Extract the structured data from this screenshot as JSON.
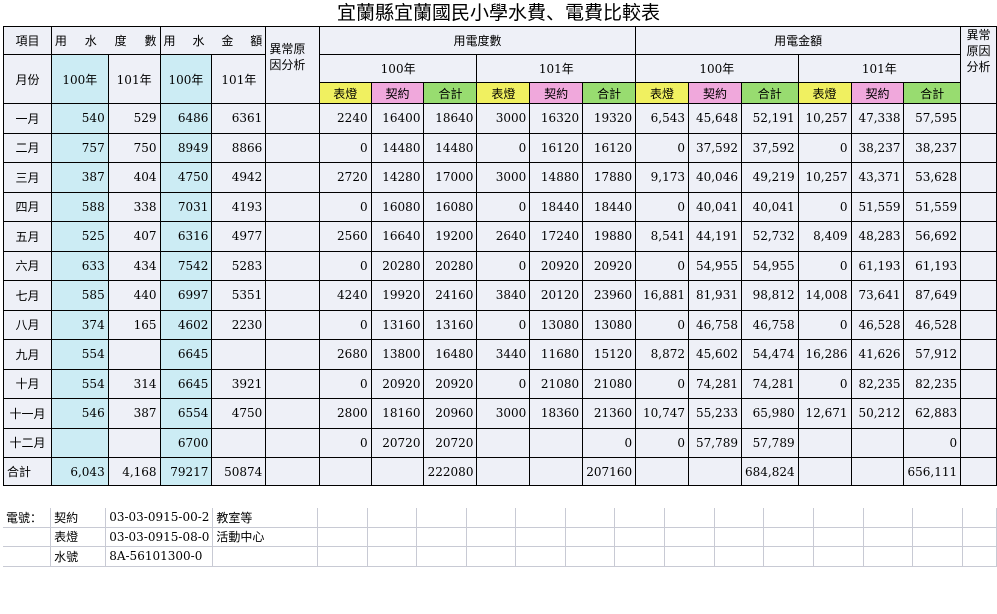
{
  "title": "宜蘭縣宜蘭國民小學水費、電費比較表",
  "headers": {
    "item": "項目",
    "water_units": [
      "用",
      "水",
      "度",
      "數"
    ],
    "water_amount": [
      "用",
      "水",
      "金",
      "額"
    ],
    "reason": "異常原因分析",
    "elec_units": "用電度數",
    "elec_amount": "用電金額",
    "reason2": "異常原因分析",
    "month": "月份",
    "y100": "100年",
    "y101": "101年",
    "meter": "表燈",
    "contract": "契約",
    "total": "合計"
  },
  "rows": [
    {
      "month": "一月",
      "w100": "540",
      "w101": "529",
      "wa100": "6486",
      "wa101": "6361",
      "eu100": [
        "2240",
        "16400",
        "18640"
      ],
      "eu101": [
        "3000",
        "16320",
        "19320"
      ],
      "ea100": [
        "6,543",
        "45,648",
        "52,191"
      ],
      "ea101": [
        "10,257",
        "47,338",
        "57,595"
      ]
    },
    {
      "month": "二月",
      "w100": "757",
      "w101": "750",
      "wa100": "8949",
      "wa101": "8866",
      "eu100": [
        "0",
        "14480",
        "14480"
      ],
      "eu101": [
        "0",
        "16120",
        "16120"
      ],
      "ea100": [
        "0",
        "37,592",
        "37,592"
      ],
      "ea101": [
        "0",
        "38,237",
        "38,237"
      ]
    },
    {
      "month": "三月",
      "w100": "387",
      "w101": "404",
      "wa100": "4750",
      "wa101": "4942",
      "eu100": [
        "2720",
        "14280",
        "17000"
      ],
      "eu101": [
        "3000",
        "14880",
        "17880"
      ],
      "ea100": [
        "9,173",
        "40,046",
        "49,219"
      ],
      "ea101": [
        "10,257",
        "43,371",
        "53,628"
      ]
    },
    {
      "month": "四月",
      "w100": "588",
      "w101": "338",
      "wa100": "7031",
      "wa101": "4193",
      "eu100": [
        "0",
        "16080",
        "16080"
      ],
      "eu101": [
        "0",
        "18440",
        "18440"
      ],
      "ea100": [
        "0",
        "40,041",
        "40,041"
      ],
      "ea101": [
        "0",
        "51,559",
        "51,559"
      ]
    },
    {
      "month": "五月",
      "w100": "525",
      "w101": "407",
      "wa100": "6316",
      "wa101": "4977",
      "eu100": [
        "2560",
        "16640",
        "19200"
      ],
      "eu101": [
        "2640",
        "17240",
        "19880"
      ],
      "ea100": [
        "8,541",
        "44,191",
        "52,732"
      ],
      "ea101": [
        "8,409",
        "48,283",
        "56,692"
      ]
    },
    {
      "month": "六月",
      "w100": "633",
      "w101": "434",
      "wa100": "7542",
      "wa101": "5283",
      "eu100": [
        "0",
        "20280",
        "20280"
      ],
      "eu101": [
        "0",
        "20920",
        "20920"
      ],
      "ea100": [
        "0",
        "54,955",
        "54,955"
      ],
      "ea101": [
        "0",
        "61,193",
        "61,193"
      ]
    },
    {
      "month": "七月",
      "w100": "585",
      "w101": "440",
      "wa100": "6997",
      "wa101": "5351",
      "eu100": [
        "4240",
        "19920",
        "24160"
      ],
      "eu101": [
        "3840",
        "20120",
        "23960"
      ],
      "ea100": [
        "16,881",
        "81,931",
        "98,812"
      ],
      "ea101": [
        "14,008",
        "73,641",
        "87,649"
      ]
    },
    {
      "month": "八月",
      "w100": "374",
      "w101": "165",
      "wa100": "4602",
      "wa101": "2230",
      "eu100": [
        "0",
        "13160",
        "13160"
      ],
      "eu101": [
        "0",
        "13080",
        "13080"
      ],
      "ea100": [
        "0",
        "46,758",
        "46,758"
      ],
      "ea101": [
        "0",
        "46,528",
        "46,528"
      ]
    },
    {
      "month": "九月",
      "w100": "554",
      "w101": "",
      "wa100": "6645",
      "wa101": "",
      "eu100": [
        "2680",
        "13800",
        "16480"
      ],
      "eu101": [
        "3440",
        "11680",
        "15120"
      ],
      "ea100": [
        "8,872",
        "45,602",
        "54,474"
      ],
      "ea101": [
        "16,286",
        "41,626",
        "57,912"
      ]
    },
    {
      "month": "十月",
      "w100": "554",
      "w101": "314",
      "wa100": "6645",
      "wa101": "3921",
      "eu100": [
        "0",
        "20920",
        "20920"
      ],
      "eu101": [
        "0",
        "21080",
        "21080"
      ],
      "ea100": [
        "0",
        "74,281",
        "74,281"
      ],
      "ea101": [
        "0",
        "82,235",
        "82,235"
      ]
    },
    {
      "month": "十一月",
      "w100": "546",
      "w101": "387",
      "wa100": "6554",
      "wa101": "4750",
      "eu100": [
        "2800",
        "18160",
        "20960"
      ],
      "eu101": [
        "3000",
        "18360",
        "21360"
      ],
      "ea100": [
        "10,747",
        "55,233",
        "65,980"
      ],
      "ea101": [
        "12,671",
        "50,212",
        "62,883"
      ]
    },
    {
      "month": "十二月",
      "w100": "",
      "w101": "",
      "wa100": "6700",
      "wa101": "",
      "eu100": [
        "0",
        "20720",
        "20720"
      ],
      "eu101": [
        "",
        "",
        "0"
      ],
      "ea100": [
        "0",
        "57,789",
        "57,789"
      ],
      "ea101": [
        "",
        "",
        "0"
      ]
    }
  ],
  "total_row": {
    "label": "合計",
    "w100": "6,043",
    "w101": "4,168",
    "wa100": "79217",
    "wa101": "50874",
    "eu100": [
      "",
      "",
      "222080"
    ],
    "eu101": [
      "",
      "",
      "207160"
    ],
    "ea100": [
      "",
      "",
      "684,824"
    ],
    "ea101": [
      "",
      "",
      "656,111"
    ]
  },
  "footer": [
    {
      "a": "電號：",
      "b": "契約",
      "c": "03-03-0915-00-2",
      "d": "教室等"
    },
    {
      "a": "",
      "b": "表燈",
      "c": "03-03-0915-08-0",
      "d": "活動中心"
    },
    {
      "a": "",
      "b": "水號",
      "c": "8A-56101300-0",
      "d": ""
    }
  ]
}
